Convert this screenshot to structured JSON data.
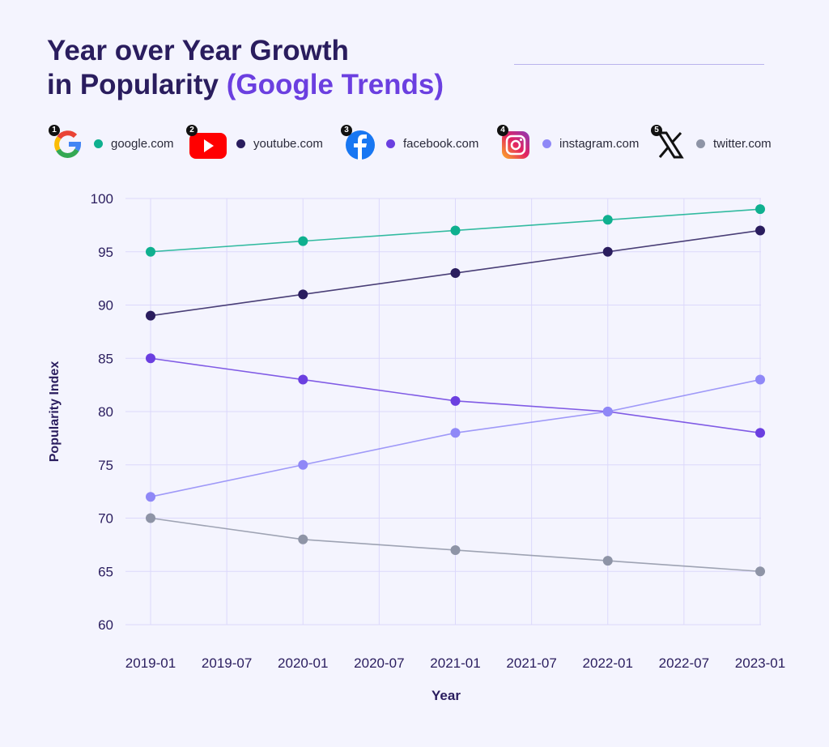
{
  "title": {
    "line1": "Year over Year Growth",
    "line2_prefix": "in Popularity ",
    "line2_highlight": "(Google Trends)"
  },
  "legend": [
    {
      "rank": "1",
      "label": "google.com",
      "icon": "google-logo-icon",
      "color": "#0fb08f"
    },
    {
      "rank": "2",
      "label": "youtube.com",
      "icon": "youtube-logo-icon",
      "color": "#2a1d5e"
    },
    {
      "rank": "3",
      "label": "facebook.com",
      "icon": "facebook-logo-icon",
      "color": "#6b3fe0"
    },
    {
      "rank": "4",
      "label": "instagram.com",
      "icon": "instagram-logo-icon",
      "color": "#8f88f7"
    },
    {
      "rank": "5",
      "label": "twitter.com",
      "icon": "x-logo-icon",
      "color": "#8e94a6"
    }
  ],
  "chart_data": {
    "type": "line",
    "xlabel": "Year",
    "ylabel": "Popularity Index",
    "ylim": [
      60,
      100
    ],
    "yticks": [
      "60",
      "65",
      "70",
      "75",
      "80",
      "85",
      "90",
      "95",
      "100"
    ],
    "xticks": [
      "2019-01",
      "2019-07",
      "2020-01",
      "2020-07",
      "2021-01",
      "2021-07",
      "2022-01",
      "2022-07",
      "2023-01"
    ],
    "x": [
      "2019-01",
      "2020-01",
      "2021-01",
      "2022-01",
      "2023-01"
    ],
    "grid": true,
    "series": [
      {
        "name": "google.com",
        "color": "#0fb08f",
        "values": [
          95,
          96,
          97,
          98,
          99
        ]
      },
      {
        "name": "youtube.com",
        "color": "#2a1d5e",
        "values": [
          89,
          91,
          93,
          95,
          97
        ]
      },
      {
        "name": "facebook.com",
        "color": "#6b3fe0",
        "values": [
          85,
          83,
          81,
          80,
          78
        ]
      },
      {
        "name": "instagram.com",
        "color": "#8f88f7",
        "values": [
          72,
          75,
          78,
          80,
          83
        ]
      },
      {
        "name": "twitter.com",
        "color": "#8e94a6",
        "values": [
          70,
          68,
          67,
          66,
          65
        ]
      }
    ]
  }
}
